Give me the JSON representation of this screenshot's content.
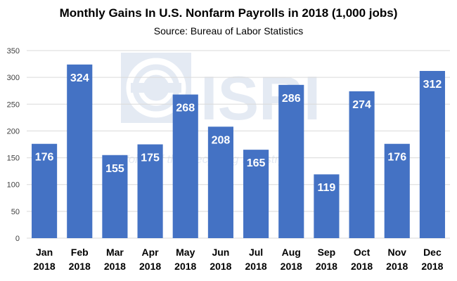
{
  "chart_data": {
    "type": "bar",
    "title": "Monthly Gains In U.S. Nonfarm Payrolls in 2018 (1,000 jobs)",
    "subtitle": "Source: Bureau of Labor Statistics",
    "categories": [
      "Jan 2018",
      "Feb 2018",
      "Mar 2018",
      "Apr 2018",
      "May 2018",
      "Jun 2018",
      "Jul 2018",
      "Aug 2018",
      "Sep 2018",
      "Oct 2018",
      "Nov 2018",
      "Dec 2018"
    ],
    "category_lines": [
      [
        "Jan",
        "2018"
      ],
      [
        "Feb",
        "2018"
      ],
      [
        "Mar",
        "2018"
      ],
      [
        "Apr",
        "2018"
      ],
      [
        "May",
        "2018"
      ],
      [
        "Jun",
        "2018"
      ],
      [
        "Jul",
        "2018"
      ],
      [
        "Aug",
        "2018"
      ],
      [
        "Sep",
        "2018"
      ],
      [
        "Oct",
        "2018"
      ],
      [
        "Nov",
        "2018"
      ],
      [
        "Dec",
        "2018"
      ]
    ],
    "values": [
      176,
      324,
      155,
      175,
      268,
      208,
      165,
      286,
      119,
      274,
      176,
      312
    ],
    "data_labels": [
      "176",
      "324",
      "155",
      "175",
      "268",
      "208",
      "165",
      "286",
      "119",
      "274",
      "176",
      "312"
    ],
    "xlabel": "",
    "ylabel": "",
    "ylim": [
      0,
      350
    ],
    "yticks": [
      0,
      50,
      100,
      150,
      200,
      250,
      300,
      350
    ],
    "ytick_labels": [
      "0",
      "50",
      "100",
      "150",
      "200",
      "250",
      "300",
      "350"
    ],
    "grid": true,
    "legend": "none",
    "bar_color": "#4472C4",
    "grid_color": "#D9D9D9",
    "label_color": "#FFFFFF"
  },
  "watermark": {
    "logo_text": "ISRI",
    "tagline": "Voice of the Recycling Industry™"
  }
}
